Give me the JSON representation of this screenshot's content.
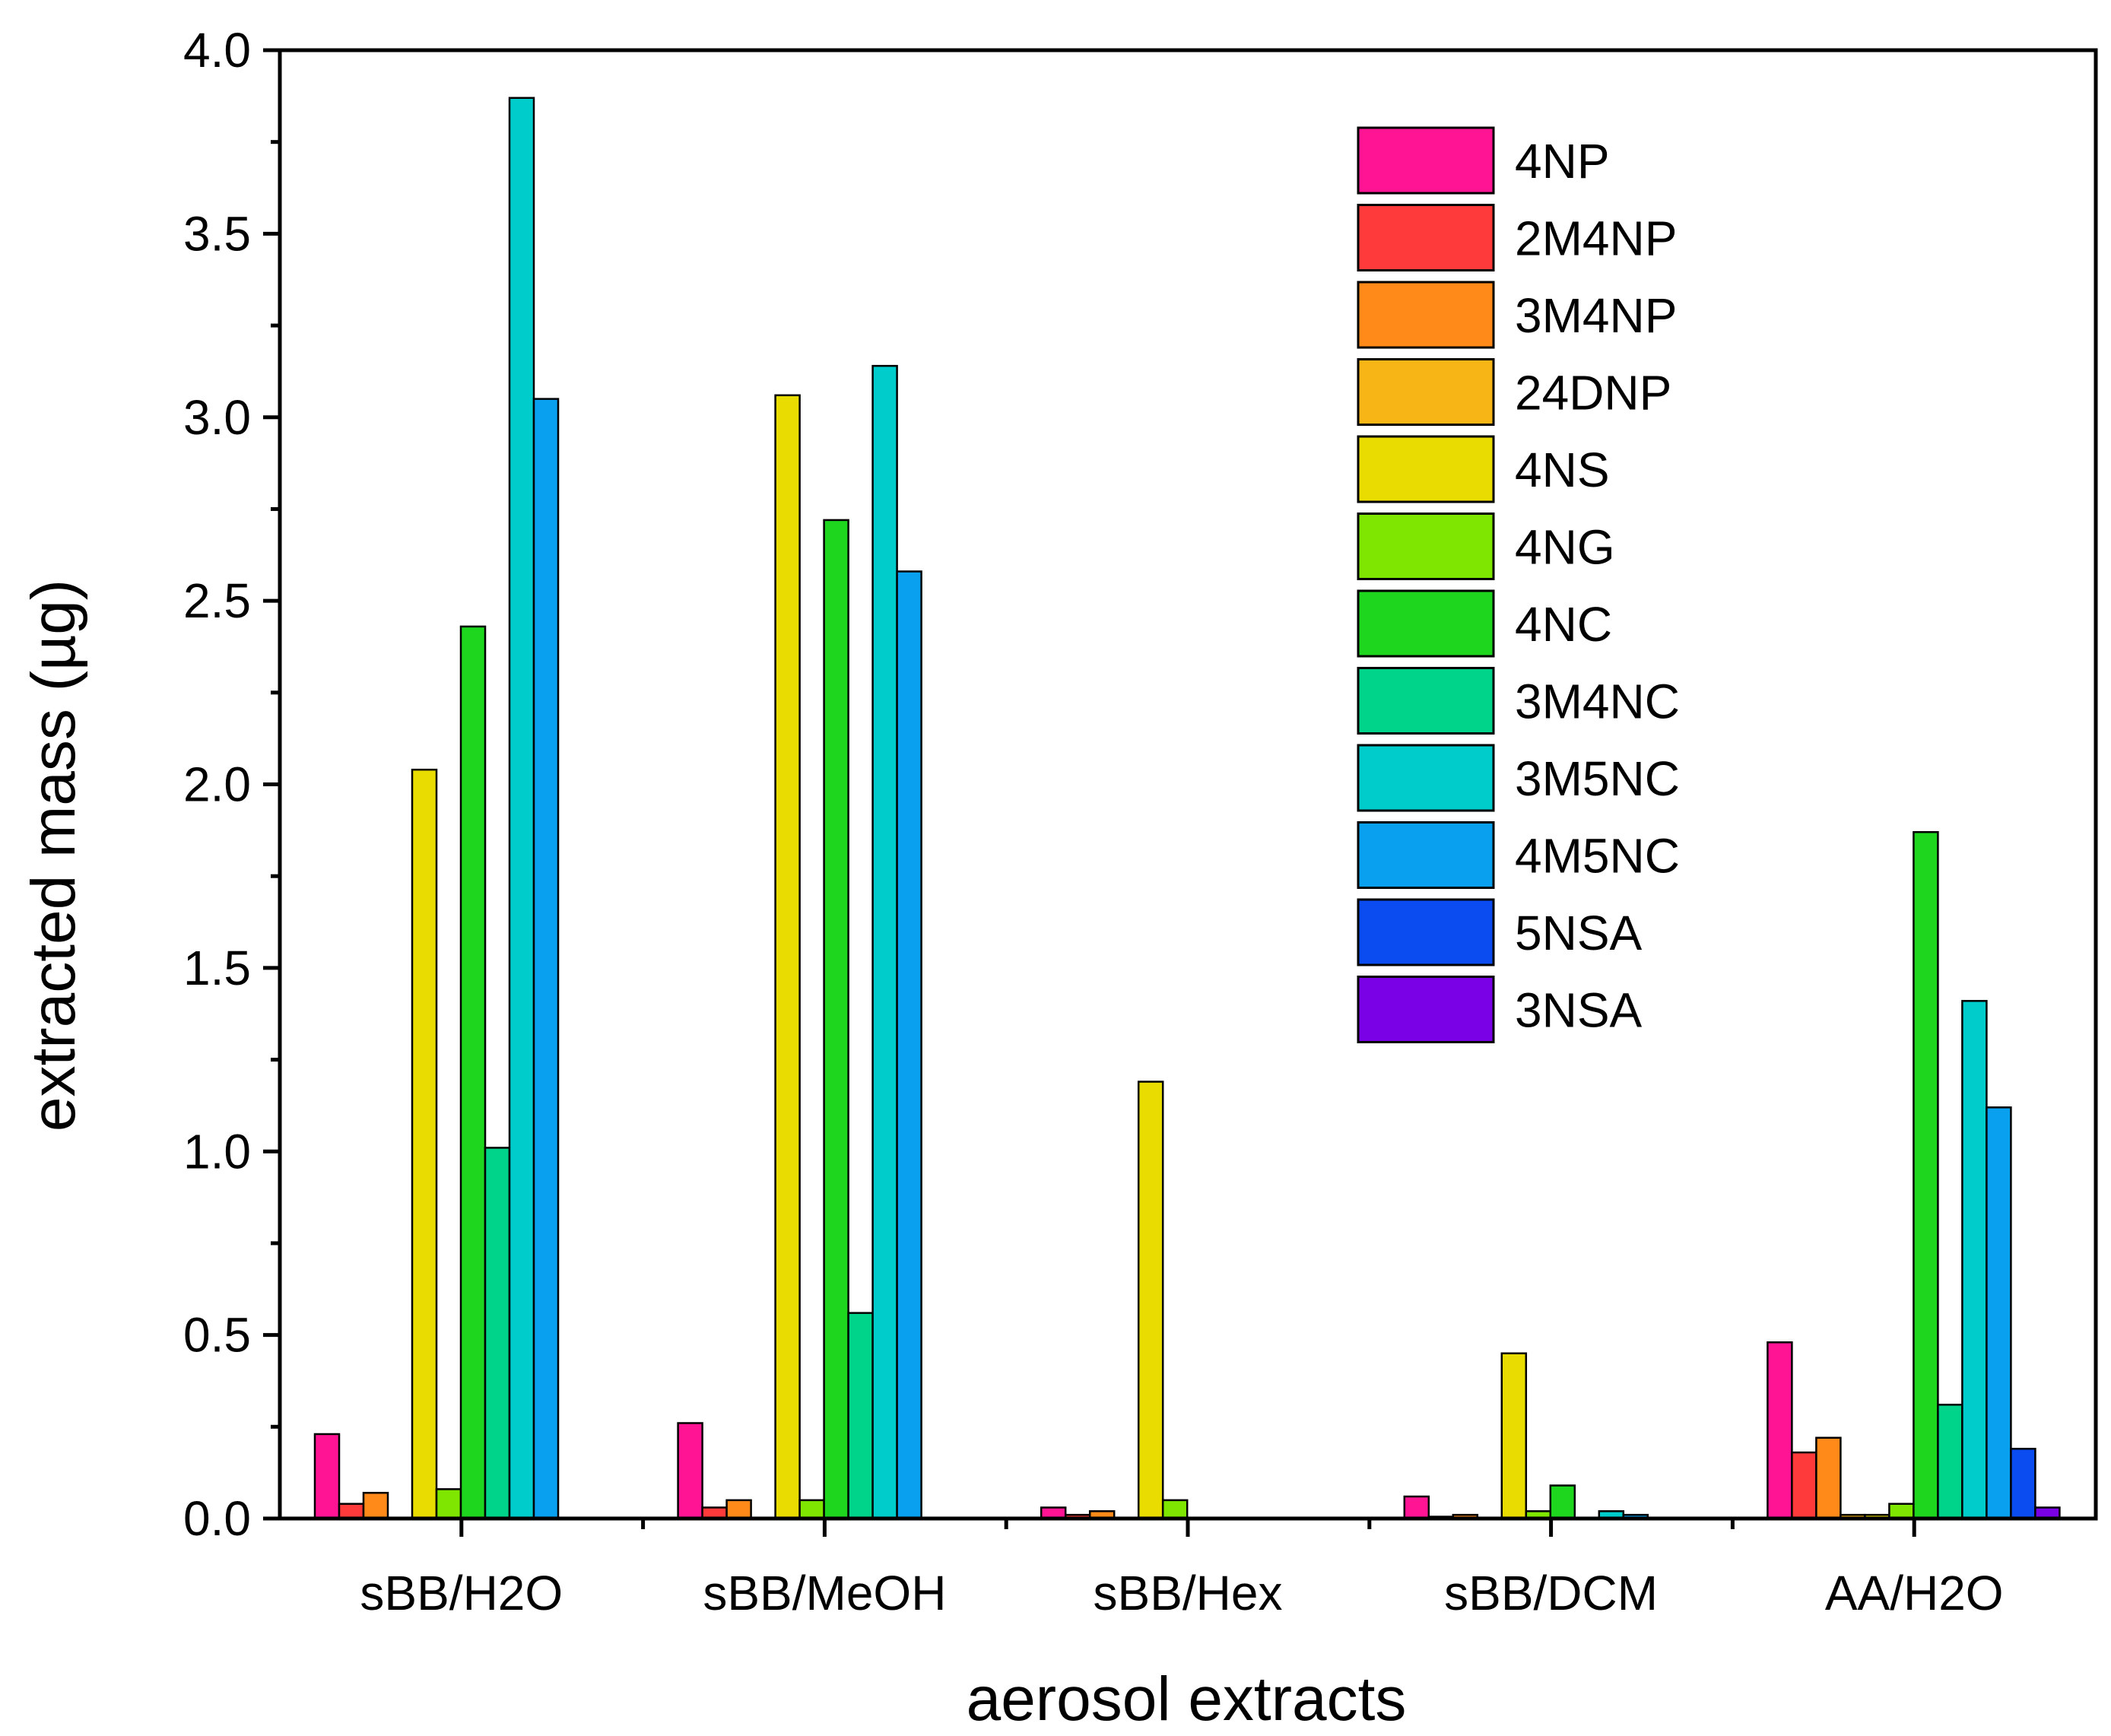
{
  "chart_data": {
    "type": "bar",
    "title": "",
    "xlabel": "aerosol extracts",
    "ylabel": "extracted mass (µg)",
    "ylim": [
      0,
      4.0
    ],
    "yticks": [
      "0.0",
      "0.5",
      "1.0",
      "1.5",
      "2.0",
      "2.5",
      "3.0",
      "3.5",
      "4.0"
    ],
    "legend_position": "top-right",
    "grid": false,
    "categories": [
      "sBB/H2O",
      "sBB/MeOH",
      "sBB/Hex",
      "sBB/DCM",
      "AA/H2O"
    ],
    "series": [
      {
        "name": "4NP",
        "color": "#ff1493",
        "values": [
          0.23,
          0.26,
          0.03,
          0.06,
          0.48
        ]
      },
      {
        "name": "2M4NP",
        "color": "#ff3a3a",
        "values": [
          0.04,
          0.03,
          0.01,
          0.005,
          0.18
        ]
      },
      {
        "name": "3M4NP",
        "color": "#ff8a1a",
        "values": [
          0.07,
          0.05,
          0.02,
          0.01,
          0.22
        ]
      },
      {
        "name": "24DNP",
        "color": "#f8b516",
        "values": [
          0.0,
          0.0,
          0.0,
          0.0,
          0.01
        ]
      },
      {
        "name": "4NS",
        "color": "#e8dc00",
        "values": [
          2.04,
          3.06,
          1.19,
          0.45,
          0.01
        ]
      },
      {
        "name": "4NG",
        "color": "#7ee600",
        "values": [
          0.08,
          0.05,
          0.05,
          0.02,
          0.04
        ]
      },
      {
        "name": "4NC",
        "color": "#1ed61e",
        "values": [
          2.43,
          2.72,
          0.0,
          0.09,
          1.87
        ]
      },
      {
        "name": "3M4NC",
        "color": "#00d48a",
        "values": [
          1.01,
          0.56,
          0.0,
          0.0,
          0.31
        ]
      },
      {
        "name": "3M5NC",
        "color": "#00cccc",
        "values": [
          3.87,
          3.14,
          0.0,
          0.02,
          1.41
        ]
      },
      {
        "name": "4M5NC",
        "color": "#0aa0f0",
        "values": [
          3.05,
          2.58,
          0.0,
          0.01,
          1.12
        ]
      },
      {
        "name": "5NSA",
        "color": "#0a4cf0",
        "values": [
          0.0,
          0.0,
          0.0,
          0.0,
          0.19
        ]
      },
      {
        "name": "3NSA",
        "color": "#7a00e6",
        "values": [
          0.0,
          0.0,
          0.0,
          0.0,
          0.03
        ]
      }
    ]
  }
}
